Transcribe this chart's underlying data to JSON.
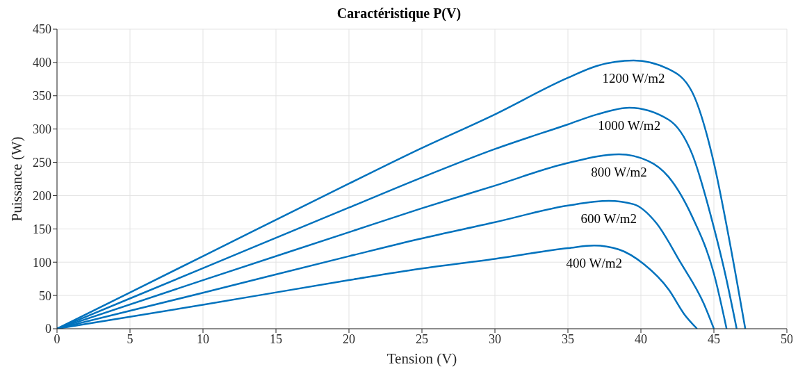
{
  "chart_data": {
    "type": "line",
    "title": "Caractéristique P(V)",
    "xlabel": "Tension (V)",
    "ylabel": "Puissance (W)",
    "xlim": [
      0,
      50
    ],
    "xticks": [
      0,
      5,
      10,
      15,
      20,
      25,
      30,
      35,
      40,
      45,
      50
    ],
    "ylim": [
      0,
      450
    ],
    "yticks": [
      0,
      50,
      100,
      150,
      200,
      250,
      300,
      350,
      400,
      450
    ],
    "grid": true,
    "marker": "none",
    "line_style": "solid",
    "series": [
      {
        "name": "1200 W/m2",
        "color": "#0072bd",
        "x": [
          0,
          10,
          20,
          24.85,
          29.9,
          35,
          37,
          39.5,
          41.9,
          43.5,
          45,
          46,
          47.15
        ],
        "values": [
          0,
          109,
          218,
          270,
          321,
          377,
          395,
          403,
          390,
          356,
          249,
          140,
          0
        ]
      },
      {
        "name": "1000 W/m2",
        "color": "#0072bd",
        "x": [
          0,
          10,
          20,
          24.85,
          30,
          35,
          37,
          39.2,
          41.9,
          43.5,
          45,
          45.8,
          46.56
        ],
        "values": [
          0,
          91,
          182,
          226,
          270,
          307,
          322,
          332,
          314,
          263,
          152,
          80,
          0
        ]
      },
      {
        "name": "800 W/m2",
        "color": "#0072bd",
        "x": [
          0,
          10,
          20,
          24.85,
          30,
          35,
          38.5,
          40.5,
          41.9,
          43.5,
          45,
          45.87
        ],
        "values": [
          0,
          73,
          145,
          180,
          215,
          249,
          262,
          252,
          228,
          169,
          83,
          0
        ]
      },
      {
        "name": "600 W/m2",
        "color": "#0072bd",
        "x": [
          0,
          10,
          20,
          24.85,
          30,
          35,
          37.8,
          39.5,
          41.05,
          42.7,
          44.3,
          45
        ],
        "values": [
          0,
          54,
          109,
          135,
          160,
          185,
          192,
          187,
          159,
          100,
          38,
          0
        ]
      },
      {
        "name": "400 W/m2",
        "color": "#0072bd",
        "x": [
          0,
          10,
          20,
          24.85,
          30,
          35,
          36.8,
          38.5,
          40.2,
          41.9,
          43,
          43.85
        ],
        "values": [
          0,
          36,
          73,
          90,
          105,
          121,
          125,
          119,
          97,
          59,
          21,
          0
        ]
      }
    ]
  }
}
